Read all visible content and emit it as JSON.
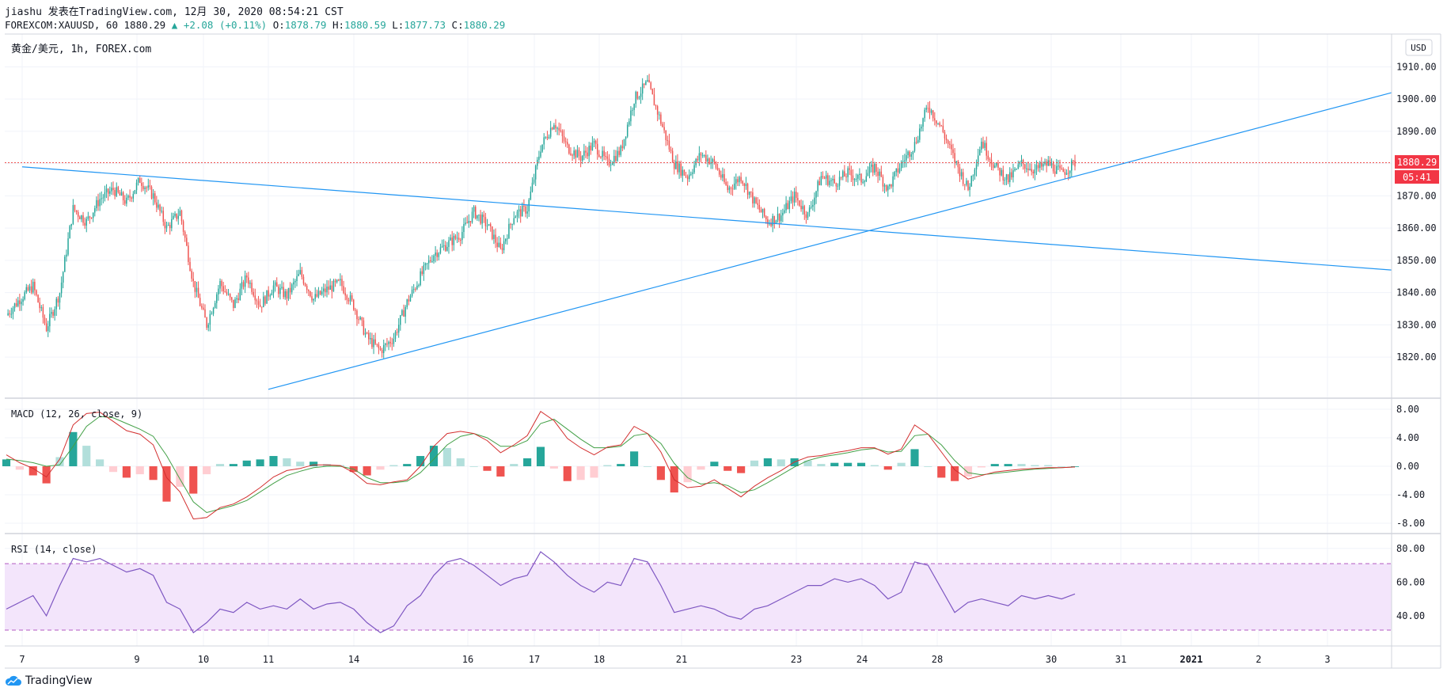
{
  "header": {
    "line1": "jiashu 发表在TradingView.com, 12月 30, 2020 08:54:21 CST",
    "symbol": "FOREXCOM:XAUUSD, 60",
    "last": "1880.29",
    "change_arrow": "▲",
    "change": "+2.08 (+0.11%)",
    "o_label": "O:",
    "o": "1878.79",
    "h_label": "H:",
    "h": "1880.59",
    "l_label": "L:",
    "l": "1877.73",
    "c_label": "C:",
    "c": "1880.29"
  },
  "chart_title": "黄金/美元, 1h, FOREX.com",
  "currency_badge": "USD",
  "price_badge": "1880.29",
  "countdown_badge": "05:41",
  "macd_label": "MACD (12, 26, close, 9)",
  "rsi_label": "RSI (14, close)",
  "brand": "TradingView",
  "colors": {
    "up": "#26a69a",
    "down": "#ef5350",
    "trend": "#2196f3",
    "rsi": "#7e57c2",
    "macd": "#d32f2f",
    "signal": "#43a047",
    "badge": "#f23645"
  },
  "chart_data": [
    {
      "type": "candlestick",
      "title": "黄金/美元, 1h, FOREX.com",
      "x_ticks": [
        "7",
        "9",
        "10",
        "11",
        "14",
        "16",
        "17",
        "18",
        "21",
        "23",
        "24",
        "28",
        "30",
        "31",
        "2021",
        "2",
        "3"
      ],
      "y_ticks": [
        "1820.00",
        "1830.00",
        "1840.00",
        "1850.00",
        "1860.00",
        "1870.00",
        "1880.00",
        "1890.00",
        "1900.00",
        "1910.00"
      ],
      "ylim": [
        1808,
        1916
      ],
      "last_price": 1880.29,
      "price_path": [
        [
          0,
          1833
        ],
        [
          1,
          1838
        ],
        [
          2,
          1842
        ],
        [
          3,
          1829
        ],
        [
          4,
          1840
        ],
        [
          5,
          1866
        ],
        [
          6,
          1862
        ],
        [
          7,
          1869
        ],
        [
          8,
          1872
        ],
        [
          9,
          1868
        ],
        [
          10,
          1875
        ],
        [
          11,
          1870
        ],
        [
          12,
          1860
        ],
        [
          13,
          1865
        ],
        [
          14,
          1843
        ],
        [
          15,
          1830
        ],
        [
          16,
          1843
        ],
        [
          17,
          1836
        ],
        [
          18,
          1845
        ],
        [
          19,
          1836
        ],
        [
          20,
          1842
        ],
        [
          21,
          1839
        ],
        [
          22,
          1846
        ],
        [
          23,
          1838
        ],
        [
          24,
          1841
        ],
        [
          25,
          1843
        ],
        [
          26,
          1836
        ],
        [
          27,
          1826
        ],
        [
          28,
          1822
        ],
        [
          29,
          1826
        ],
        [
          30,
          1837
        ],
        [
          31,
          1845
        ],
        [
          32,
          1852
        ],
        [
          33,
          1855
        ],
        [
          34,
          1858
        ],
        [
          35,
          1865
        ],
        [
          36,
          1861
        ],
        [
          37,
          1853
        ],
        [
          38,
          1864
        ],
        [
          39,
          1866
        ],
        [
          40,
          1885
        ],
        [
          41,
          1893
        ],
        [
          42,
          1885
        ],
        [
          43,
          1882
        ],
        [
          44,
          1886
        ],
        [
          45,
          1880
        ],
        [
          46,
          1884
        ],
        [
          47,
          1900
        ],
        [
          48,
          1905
        ],
        [
          49,
          1893
        ],
        [
          50,
          1880
        ],
        [
          51,
          1876
        ],
        [
          52,
          1883
        ],
        [
          53,
          1880
        ],
        [
          54,
          1872
        ],
        [
          55,
          1876
        ],
        [
          56,
          1868
        ],
        [
          57,
          1862
        ],
        [
          58,
          1864
        ],
        [
          59,
          1870
        ],
        [
          60,
          1864
        ],
        [
          61,
          1876
        ],
        [
          62,
          1874
        ],
        [
          63,
          1877
        ],
        [
          64,
          1875
        ],
        [
          65,
          1879
        ],
        [
          66,
          1872
        ],
        [
          67,
          1880
        ],
        [
          68,
          1886
        ],
        [
          69,
          1898
        ],
        [
          70,
          1891
        ],
        [
          71,
          1881
        ],
        [
          72,
          1872
        ],
        [
          73,
          1887
        ],
        [
          74,
          1879
        ],
        [
          75,
          1875
        ],
        [
          76,
          1880
        ],
        [
          77,
          1878
        ],
        [
          78,
          1880
        ],
        [
          79,
          1877
        ],
        [
          80,
          1880.29
        ]
      ],
      "trendlines": [
        {
          "from": [
            "7",
            1879
          ],
          "to": [
            "3",
            1847
          ]
        },
        {
          "from": [
            "11",
            1810
          ],
          "to": [
            "3",
            1902
          ]
        }
      ]
    },
    {
      "type": "line",
      "title": "MACD (12, 26, close, 9)",
      "y_ticks": [
        "-8.00",
        "-4.00",
        "0.00",
        "4.00",
        "8.00"
      ],
      "ylim": [
        -9,
        9
      ],
      "macd": [
        1.6,
        0.5,
        -0.3,
        -1.5,
        1.0,
        5.8,
        7.4,
        7.6,
        6.3,
        5.0,
        4.5,
        3.0,
        -1.6,
        -3.6,
        -7.4,
        -7.2,
        -5.8,
        -5.3,
        -4.3,
        -3.0,
        -1.5,
        -0.6,
        -0.3,
        0.2,
        0.2,
        0.1,
        -0.9,
        -2.4,
        -2.6,
        -2.2,
        -1.9,
        0.0,
        2.8,
        4.6,
        4.9,
        4.6,
        3.6,
        1.9,
        3.0,
        4.3,
        7.7,
        6.4,
        3.9,
        2.6,
        1.6,
        2.7,
        3.0,
        5.6,
        4.6,
        2.0,
        -1.9,
        -3.0,
        -2.8,
        -1.9,
        -3.1,
        -4.3,
        -2.8,
        -1.6,
        -0.6,
        0.6,
        1.3,
        1.5,
        1.9,
        2.2,
        2.6,
        2.6,
        1.7,
        2.4,
        5.8,
        4.5,
        2.0,
        -0.5,
        -1.8,
        -1.3,
        -0.8,
        -0.6,
        -0.4,
        -0.3,
        -0.2,
        -0.2,
        -0.1
      ],
      "signal": [
        1.0,
        0.8,
        0.5,
        0.0,
        0.2,
        2.8,
        5.6,
        7.0,
        6.8,
        6.0,
        5.2,
        4.2,
        1.5,
        -1.8,
        -5.0,
        -6.5,
        -6.0,
        -5.5,
        -4.8,
        -3.6,
        -2.4,
        -1.3,
        -0.7,
        -0.2,
        0.0,
        0.0,
        -0.4,
        -1.6,
        -2.3,
        -2.3,
        -2.1,
        -0.9,
        1.0,
        3.0,
        4.2,
        4.6,
        4.0,
        2.8,
        2.8,
        3.6,
        6.0,
        6.6,
        5.2,
        3.8,
        2.6,
        2.6,
        2.8,
        4.3,
        4.6,
        3.2,
        0.4,
        -1.6,
        -2.5,
        -2.3,
        -2.7,
        -3.7,
        -3.3,
        -2.3,
        -1.2,
        -0.1,
        0.8,
        1.3,
        1.6,
        1.9,
        2.3,
        2.5,
        2.0,
        2.1,
        4.3,
        4.5,
        3.0,
        0.8,
        -0.9,
        -1.2,
        -1.0,
        -0.8,
        -0.6,
        -0.4,
        -0.3,
        -0.2,
        -0.1
      ]
    },
    {
      "type": "line",
      "title": "RSI (14, close)",
      "y_ticks": [
        "40.00",
        "60.00",
        "80.00"
      ],
      "ylim": [
        24,
        86
      ],
      "bands": [
        30,
        70
      ],
      "values": [
        44,
        48,
        52,
        40,
        58,
        74,
        72,
        74,
        70,
        66,
        68,
        64,
        48,
        44,
        30,
        36,
        44,
        42,
        48,
        44,
        46,
        44,
        50,
        44,
        47,
        48,
        44,
        36,
        30,
        34,
        46,
        52,
        64,
        72,
        74,
        70,
        64,
        58,
        62,
        64,
        78,
        72,
        64,
        58,
        54,
        60,
        58,
        74,
        72,
        58,
        42,
        44,
        46,
        44,
        40,
        38,
        44,
        46,
        50,
        54,
        58,
        58,
        62,
        60,
        62,
        58,
        50,
        54,
        72,
        70,
        56,
        42,
        48,
        50,
        48,
        46,
        52,
        50,
        52,
        50,
        53
      ]
    }
  ]
}
